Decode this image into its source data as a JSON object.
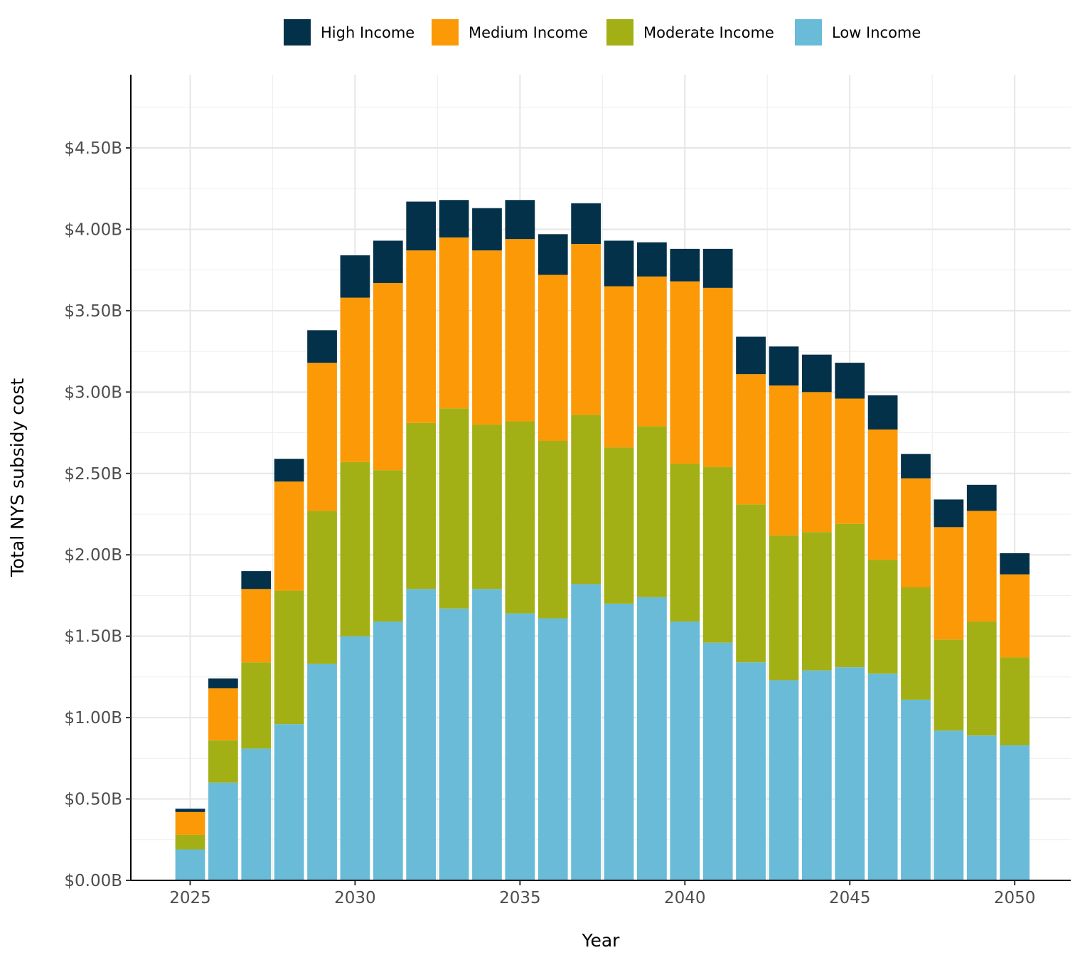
{
  "chart_data": {
    "type": "bar",
    "stacked": true,
    "xlabel": "Year",
    "ylabel": "Total NYS subsidy cost",
    "ylim": [
      0,
      4.95
    ],
    "y_ticks": [
      0,
      0.5,
      1.0,
      1.5,
      2.0,
      2.5,
      3.0,
      3.5,
      4.0,
      4.5
    ],
    "y_tick_labels": [
      "$0.00B",
      "$0.50B",
      "$1.00B",
      "$1.50B",
      "$2.00B",
      "$2.50B",
      "$3.00B",
      "$3.50B",
      "$4.00B",
      "$4.50B"
    ],
    "x_ticks": [
      2025,
      2030,
      2035,
      2040,
      2045,
      2050
    ],
    "x_tick_labels": [
      "2025",
      "2030",
      "2035",
      "2040",
      "2045",
      "2050"
    ],
    "xlim": [
      2023.2,
      2051.7
    ],
    "y_unit": "billion USD",
    "grid": true,
    "legend_position": "top",
    "categories": [
      2025,
      2026,
      2027,
      2028,
      2029,
      2030,
      2031,
      2032,
      2033,
      2034,
      2035,
      2036,
      2037,
      2038,
      2039,
      2040,
      2041,
      2042,
      2043,
      2044,
      2045,
      2046,
      2047,
      2048,
      2049,
      2050
    ],
    "legend": [
      {
        "name": "High Income",
        "color": "#04314a"
      },
      {
        "name": "Medium Income",
        "color": "#fb9907"
      },
      {
        "name": "Moderate Income",
        "color": "#a2b015"
      },
      {
        "name": "Low Income",
        "color": "#69bbd8"
      }
    ],
    "series": [
      {
        "name": "Low Income",
        "color": "#69bbd8",
        "values": [
          0.19,
          0.6,
          0.81,
          0.96,
          1.33,
          1.5,
          1.59,
          1.79,
          1.67,
          1.79,
          1.64,
          1.61,
          1.82,
          1.7,
          1.74,
          1.59,
          1.46,
          1.34,
          1.23,
          1.29,
          1.31,
          1.27,
          1.11,
          0.92,
          0.89,
          0.83
        ]
      },
      {
        "name": "Moderate Income",
        "color": "#a2b015",
        "values": [
          0.09,
          0.26,
          0.53,
          0.82,
          0.94,
          1.07,
          0.93,
          1.02,
          1.23,
          1.01,
          1.18,
          1.09,
          1.04,
          0.96,
          1.05,
          0.97,
          1.08,
          0.97,
          0.89,
          0.85,
          0.88,
          0.7,
          0.69,
          0.56,
          0.7,
          0.54
        ]
      },
      {
        "name": "Medium Income",
        "color": "#fb9907",
        "values": [
          0.14,
          0.32,
          0.45,
          0.67,
          0.91,
          1.01,
          1.15,
          1.06,
          1.05,
          1.07,
          1.12,
          1.02,
          1.05,
          0.99,
          0.92,
          1.12,
          1.1,
          0.8,
          0.92,
          0.86,
          0.77,
          0.8,
          0.67,
          0.69,
          0.68,
          0.51
        ]
      },
      {
        "name": "High Income",
        "color": "#04314a",
        "values": [
          0.02,
          0.06,
          0.11,
          0.14,
          0.2,
          0.26,
          0.26,
          0.3,
          0.23,
          0.26,
          0.24,
          0.25,
          0.25,
          0.28,
          0.21,
          0.2,
          0.24,
          0.23,
          0.24,
          0.23,
          0.22,
          0.21,
          0.15,
          0.17,
          0.16,
          0.13
        ]
      }
    ]
  }
}
